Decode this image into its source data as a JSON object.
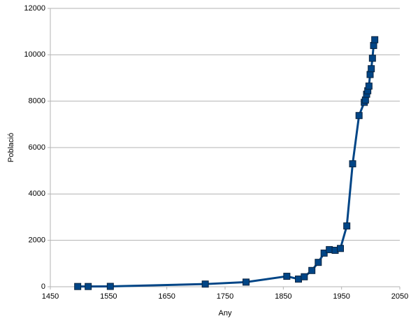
{
  "chart_data": {
    "type": "line",
    "x": [
      1497,
      1515,
      1553,
      1716,
      1786,
      1856,
      1876,
      1886,
      1899,
      1910,
      1920,
      1929,
      1939,
      1948,
      1959,
      1969,
      1980,
      1989,
      1991,
      1993,
      1995,
      1997,
      1999,
      2001,
      2003,
      2005,
      2007
    ],
    "values": [
      10,
      10,
      15,
      115,
      200,
      450,
      330,
      430,
      700,
      1050,
      1450,
      1600,
      1570,
      1650,
      2620,
      5300,
      7380,
      7950,
      8050,
      8300,
      8450,
      8650,
      9150,
      9400,
      9850,
      10400,
      10650
    ],
    "color": "#004586",
    "xlim": [
      1450,
      2050
    ],
    "xticks": [
      1450,
      1550,
      1650,
      1750,
      1850,
      1950,
      2050
    ],
    "ylim": [
      0,
      12000
    ],
    "yticks": [
      0,
      2000,
      4000,
      6000,
      8000,
      10000,
      12000
    ],
    "grid": true,
    "xlabel": "Any",
    "ylabel": "Població"
  }
}
